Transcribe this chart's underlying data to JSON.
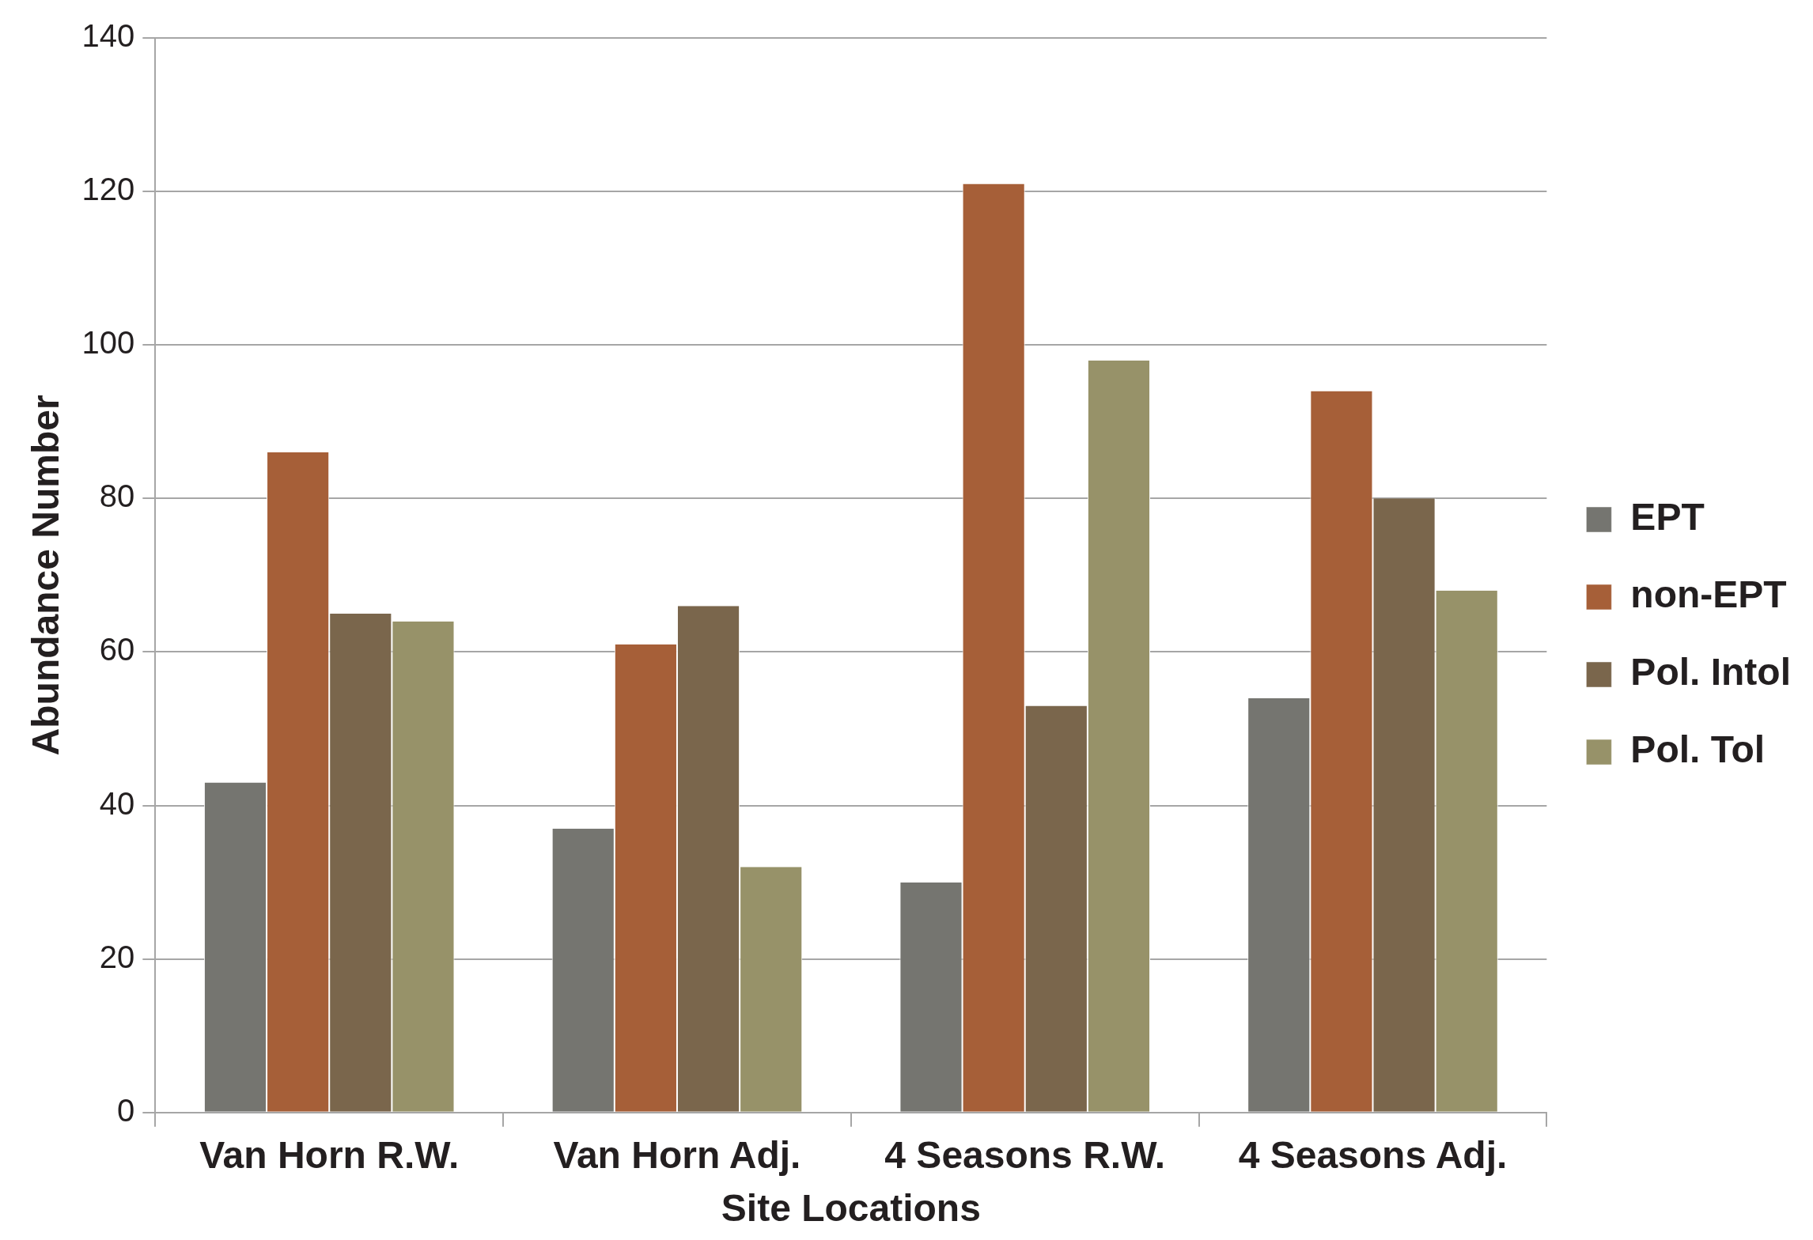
{
  "chart_data": {
    "type": "bar",
    "xlabel": "Site Locations",
    "ylabel": "Abundance Number",
    "categories": [
      "Van Horn R.W.",
      "Van Horn Adj.",
      "4 Seasons R.W.",
      "4 Seasons Adj."
    ],
    "series": [
      {
        "name": "EPT",
        "color": "#757570",
        "values": [
          43,
          37,
          30,
          54
        ]
      },
      {
        "name": "non-EPT",
        "color": "#a65f38",
        "values": [
          86,
          61,
          121,
          94
        ]
      },
      {
        "name": "Pol. Intol",
        "color": "#7a664c",
        "values": [
          65,
          66,
          53,
          80
        ]
      },
      {
        "name": "Pol. Tol",
        "color": "#979269",
        "values": [
          64,
          32,
          98,
          68
        ]
      }
    ],
    "ylim": [
      0,
      140
    ],
    "yticks": [
      0,
      20,
      40,
      60,
      80,
      100,
      120,
      140
    ],
    "grid": "y",
    "legend": "right"
  }
}
